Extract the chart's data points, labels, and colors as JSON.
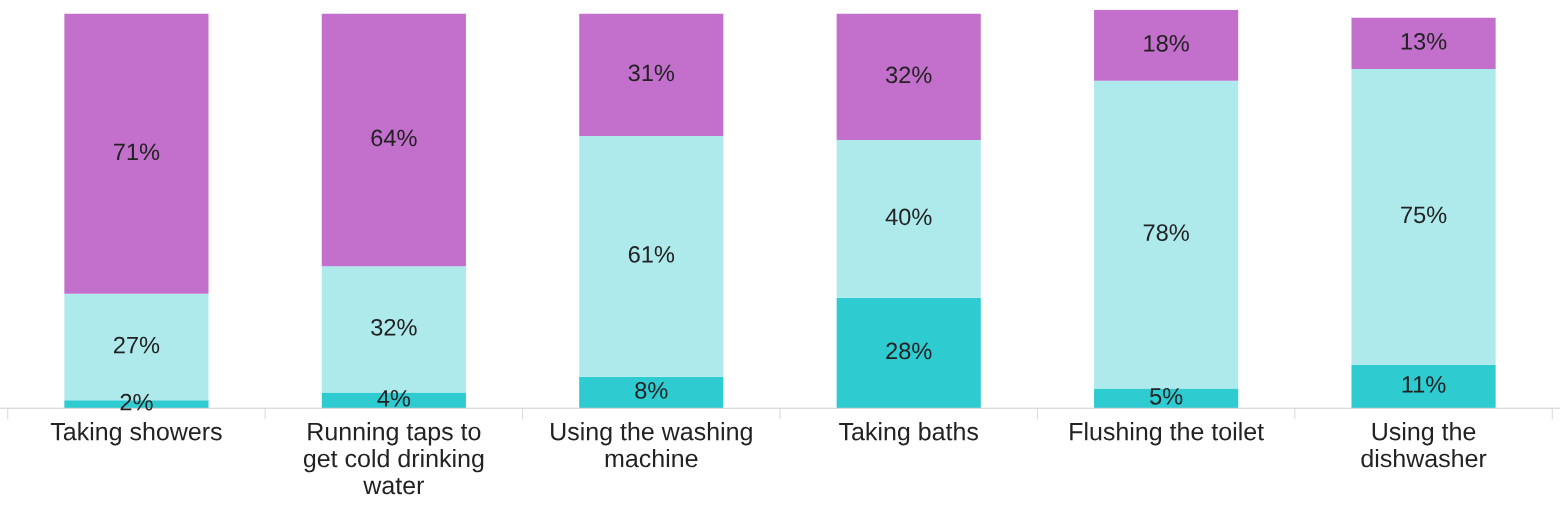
{
  "chart_data": {
    "type": "bar",
    "stacked": true,
    "tick_labels": "x",
    "categories": [
      "Taking showers",
      "Running taps to\nget cold drinking\nwater",
      "Using the washing\nmachine",
      "Taking baths",
      "Flushing the toilet",
      "Using the\ndishwasher"
    ],
    "series": [
      {
        "color": "#2ecbd1",
        "values": [
          2,
          4,
          8,
          28,
          5,
          11
        ],
        "value_labels": [
          "2%",
          "4%",
          "8%",
          "28%",
          "5%",
          "11%"
        ]
      },
      {
        "color": "#aeeaec",
        "values": [
          27,
          32,
          61,
          40,
          78,
          75
        ],
        "value_labels": [
          "27%",
          "32%",
          "61%",
          "40%",
          "78%",
          "75%"
        ]
      },
      {
        "color": "#c36fcc",
        "values": [
          71,
          64,
          31,
          32,
          18,
          13
        ],
        "value_labels": [
          "71%",
          "64%",
          "31%",
          "32%",
          "18%",
          "13%"
        ]
      }
    ]
  }
}
